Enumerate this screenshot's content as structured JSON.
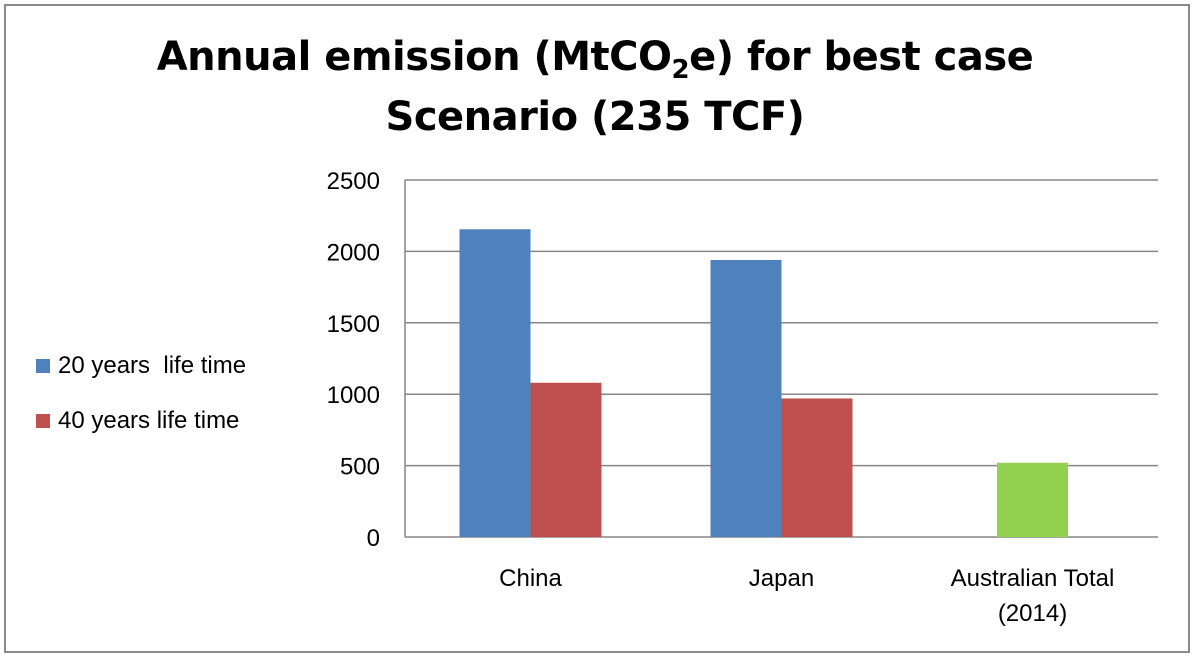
{
  "chart_data": {
    "type": "bar",
    "title_prefix": "Annual emission (MtCO",
    "title_subscript": "2",
    "title_suffix": "e) for best case",
    "title_line2": "Scenario (235 TCF)",
    "categories": [
      [
        "China"
      ],
      [
        "Japan"
      ],
      [
        "Australian Total",
        "(2014)"
      ]
    ],
    "series": [
      {
        "name": "20 years  life time",
        "color": "#4f81bd",
        "values": [
          2155,
          1940,
          null
        ]
      },
      {
        "name": "40 years life time",
        "color": "#c0504d",
        "values": [
          1080,
          970,
          null
        ]
      },
      {
        "name": "",
        "color": "#92d050",
        "values": [
          null,
          null,
          520
        ]
      }
    ],
    "ylim": [
      0,
      2500
    ],
    "yticks": [
      0,
      500,
      1000,
      1500,
      2000,
      2500
    ],
    "grid": true,
    "legend_position": "left"
  },
  "colors": {
    "frame_border": "#8a8a8a",
    "gridline": "#868686",
    "text": "#000000"
  }
}
